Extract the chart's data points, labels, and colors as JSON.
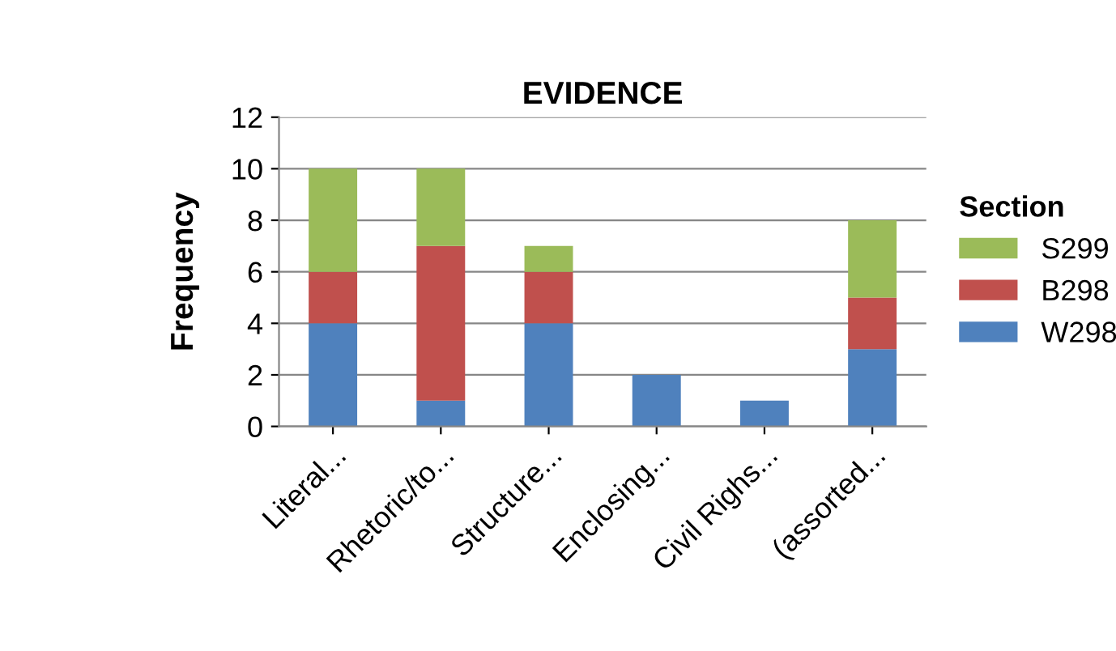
{
  "chart_data": {
    "type": "bar",
    "title": "EVIDENCE",
    "ylabel": "Frequency",
    "legend_title": "Section",
    "categories": [
      "Literal...",
      "Rhetoric/to...",
      "Structure...",
      "Enclosing...",
      "Civil Righs...",
      "(assorted..."
    ],
    "stacked": true,
    "series": [
      {
        "name": "W298",
        "color": "#4f81bd",
        "values": [
          4,
          1,
          4,
          2,
          1,
          3
        ]
      },
      {
        "name": "B298",
        "color": "#c0504d",
        "values": [
          2,
          6,
          2,
          0,
          0,
          2
        ]
      },
      {
        "name": "S299",
        "color": "#9bbb59",
        "values": [
          4,
          3,
          1,
          0,
          0,
          3
        ]
      }
    ],
    "ylim": [
      0,
      12
    ],
    "yticks": [
      0,
      2,
      4,
      6,
      8,
      10,
      12
    ],
    "grid": "y",
    "legend": "right"
  }
}
